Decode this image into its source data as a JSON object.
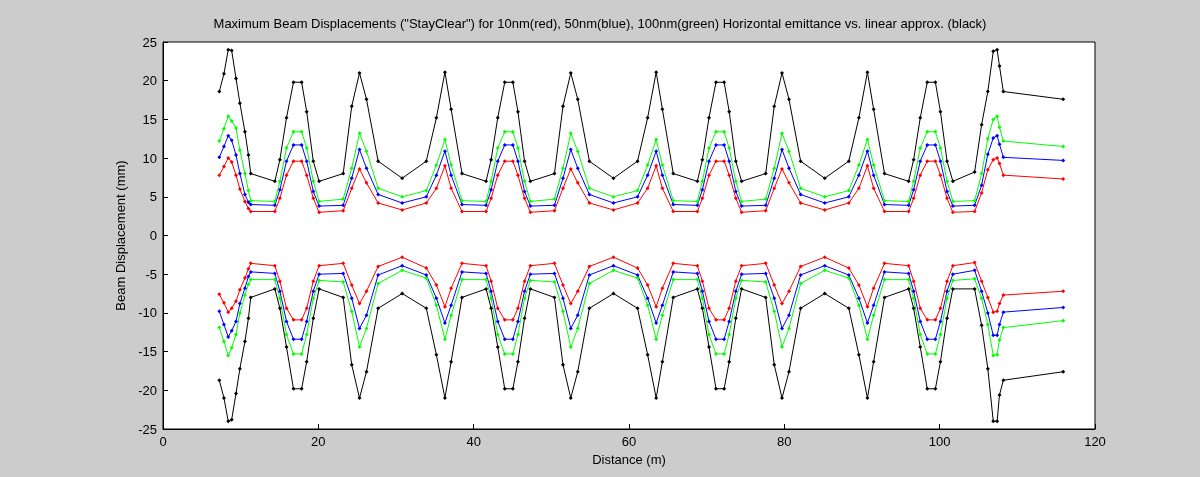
{
  "chart_data": {
    "type": "line",
    "title": "Maximum Beam Displacements (\"StayClear\") for 10nm(red), 50nm(blue), 100nm(green) Horizontal emittance vs. linear approx. (black)",
    "xlabel": "Distance (m)",
    "ylabel": "Beam Displacement (mm)",
    "xlim": [
      0,
      120
    ],
    "xticks": [
      0,
      20,
      40,
      60,
      80,
      100,
      120
    ],
    "ylim": [
      -25,
      25
    ],
    "yticks": [
      -25,
      -20,
      -15,
      -10,
      -5,
      0,
      5,
      10,
      15,
      20,
      25
    ],
    "grid": false,
    "legend": false,
    "marker": "diamond",
    "line_style": "solid",
    "x": [
      7.25,
      7.85,
      8.4,
      8.84,
      9.4,
      9.9,
      10.55,
      11.0,
      11.3,
      14.4,
      15.05,
      15.9,
      16.8,
      17.85,
      18.5,
      19.35,
      20.1,
      23.2,
      24.3,
      25.3,
      26.2,
      27.7,
      30.8,
      33.9,
      35.2,
      36.3,
      37.1,
      38.5,
      41.6,
      42.25,
      43.1,
      44.0,
      45.05,
      45.7,
      46.55,
      47.3,
      50.4,
      51.5,
      52.5,
      53.4,
      54.9,
      58.0,
      61.1,
      62.4,
      63.5,
      64.3,
      65.7,
      68.8,
      69.45,
      70.3,
      71.2,
      72.25,
      72.9,
      73.75,
      74.5,
      77.6,
      78.7,
      79.7,
      80.6,
      82.1,
      85.2,
      88.3,
      89.6,
      90.7,
      91.5,
      92.9,
      96.0,
      96.65,
      97.5,
      98.4,
      99.45,
      100.1,
      100.95,
      101.7,
      104.5,
      105.4,
      106.2,
      106.9,
      107.4,
      107.7,
      108.2,
      115.9
    ],
    "series": [
      {
        "color": "#000000",
        "values": [
          18.6,
          20.9,
          24.0,
          23.9,
          20.3,
          17.1,
          13.4,
          10.4,
          8.0,
          7.0,
          9.8,
          15.2,
          19.8,
          19.8,
          16.0,
          9.6,
          7.0,
          8.0,
          16.7,
          21.0,
          17.6,
          9.6,
          7.4,
          9.6,
          15.2,
          21.1,
          16.3,
          8.0,
          7.0,
          9.8,
          15.2,
          19.8,
          19.8,
          16.0,
          9.6,
          7.0,
          8.0,
          16.7,
          21.0,
          17.6,
          9.6,
          7.4,
          9.6,
          15.2,
          21.1,
          16.3,
          8.0,
          7.0,
          9.8,
          15.2,
          19.8,
          19.8,
          16.0,
          9.6,
          7.0,
          8.0,
          16.7,
          21.0,
          17.6,
          9.6,
          7.4,
          9.6,
          15.2,
          21.1,
          16.3,
          8.0,
          7.0,
          9.8,
          15.2,
          19.8,
          19.8,
          16.0,
          9.6,
          7.0,
          8.2,
          14.3,
          18.6,
          23.8,
          24.0,
          21.9,
          18.6,
          17.6
        ]
      },
      {
        "color": "#00ff00",
        "values": [
          12.2,
          13.8,
          15.4,
          14.8,
          13.9,
          11.0,
          8.0,
          5.8,
          4.5,
          4.4,
          7.0,
          11.3,
          13.4,
          13.4,
          11.3,
          7.0,
          4.4,
          4.7,
          8.7,
          13.2,
          10.9,
          6.1,
          5.0,
          5.8,
          9.1,
          12.4,
          9.1,
          4.5,
          4.4,
          7.0,
          11.3,
          13.4,
          13.4,
          11.3,
          7.0,
          4.4,
          4.7,
          8.7,
          13.2,
          10.9,
          6.1,
          5.0,
          5.8,
          9.1,
          12.4,
          9.1,
          4.5,
          4.4,
          7.0,
          11.3,
          13.4,
          13.4,
          11.3,
          7.0,
          4.4,
          4.7,
          8.7,
          13.2,
          10.9,
          6.1,
          5.0,
          5.8,
          9.1,
          12.4,
          9.1,
          4.5,
          4.4,
          7.0,
          11.3,
          13.4,
          13.4,
          11.3,
          7.0,
          4.4,
          4.5,
          8.0,
          12.5,
          15.0,
          15.4,
          14.0,
          12.2,
          11.5
        ]
      },
      {
        "color": "#0000ff",
        "values": [
          10.1,
          11.5,
          12.9,
          12.3,
          10.4,
          8.0,
          5.3,
          4.3,
          4.0,
          3.9,
          5.9,
          9.6,
          11.7,
          11.7,
          9.6,
          5.7,
          3.8,
          3.9,
          7.4,
          11.1,
          8.7,
          5.3,
          4.2,
          5.0,
          7.8,
          10.9,
          7.8,
          4.0,
          3.9,
          5.9,
          9.6,
          11.7,
          11.7,
          9.6,
          5.7,
          3.8,
          3.9,
          7.4,
          11.1,
          8.7,
          5.3,
          4.2,
          5.0,
          7.8,
          10.9,
          7.8,
          4.0,
          3.9,
          5.9,
          9.6,
          11.7,
          11.7,
          9.6,
          5.7,
          3.8,
          3.9,
          7.4,
          11.1,
          8.7,
          5.3,
          4.2,
          5.0,
          7.8,
          10.9,
          7.8,
          4.0,
          3.9,
          5.9,
          9.6,
          11.7,
          11.7,
          9.6,
          5.7,
          3.8,
          3.9,
          6.5,
          10.5,
          12.6,
          12.9,
          11.8,
          10.1,
          9.7
        ]
      },
      {
        "color": "#ff0000",
        "values": [
          7.8,
          8.9,
          10.0,
          9.5,
          7.8,
          6.0,
          4.4,
          3.5,
          3.1,
          3.1,
          4.8,
          7.8,
          9.6,
          9.6,
          7.8,
          4.8,
          3.0,
          3.2,
          6.1,
          8.6,
          6.8,
          4.2,
          3.3,
          4.2,
          6.1,
          9.0,
          6.1,
          3.1,
          3.1,
          4.8,
          7.8,
          9.6,
          9.6,
          7.8,
          4.8,
          3.0,
          3.2,
          6.1,
          8.6,
          6.8,
          4.2,
          3.3,
          4.2,
          6.1,
          9.0,
          6.1,
          3.1,
          3.1,
          4.8,
          7.8,
          9.6,
          9.6,
          7.8,
          4.8,
          3.0,
          3.2,
          6.1,
          8.6,
          6.8,
          4.2,
          3.3,
          4.2,
          6.1,
          9.0,
          6.1,
          3.1,
          3.1,
          4.8,
          7.8,
          9.6,
          9.6,
          7.8,
          4.8,
          3.0,
          3.1,
          5.5,
          8.5,
          9.8,
          10.0,
          9.3,
          7.8,
          7.3
        ]
      },
      {
        "color": "#000000",
        "values": [
          -18.7,
          -21.0,
          -24.0,
          -23.8,
          -20.4,
          -17.2,
          -13.7,
          -10.7,
          -8.0,
          -6.9,
          -9.4,
          -14.4,
          -19.8,
          -19.8,
          -16.3,
          -10.7,
          -6.9,
          -8.0,
          -16.7,
          -21.0,
          -17.6,
          -9.4,
          -7.5,
          -9.4,
          -15.4,
          -21.0,
          -16.3,
          -8.0,
          -6.9,
          -9.4,
          -14.4,
          -19.8,
          -19.8,
          -16.3,
          -10.7,
          -6.9,
          -8.0,
          -16.7,
          -21.0,
          -17.6,
          -9.4,
          -7.5,
          -9.4,
          -15.4,
          -21.0,
          -16.3,
          -8.0,
          -6.9,
          -9.4,
          -14.4,
          -19.8,
          -19.8,
          -16.3,
          -10.7,
          -6.9,
          -8.0,
          -16.7,
          -21.0,
          -17.6,
          -9.4,
          -7.5,
          -9.4,
          -15.4,
          -21.0,
          -16.3,
          -8.0,
          -6.9,
          -9.4,
          -14.4,
          -19.8,
          -19.8,
          -16.3,
          -10.7,
          -6.9,
          -6.9,
          -11.6,
          -17.2,
          -24.0,
          -24.0,
          -20.6,
          -18.7,
          -17.6
        ]
      },
      {
        "color": "#00ff00",
        "values": [
          -11.9,
          -13.7,
          -15.5,
          -14.5,
          -12.8,
          -10.0,
          -7.7,
          -6.3,
          -5.7,
          -5.7,
          -8.1,
          -12.8,
          -15.3,
          -15.3,
          -12.8,
          -8.1,
          -5.8,
          -6.0,
          -9.8,
          -14.4,
          -12.0,
          -6.2,
          -4.5,
          -5.5,
          -9.0,
          -13.4,
          -10.3,
          -5.7,
          -5.7,
          -8.1,
          -12.8,
          -15.3,
          -15.3,
          -12.8,
          -8.1,
          -5.8,
          -6.0,
          -9.8,
          -14.4,
          -12.0,
          -6.2,
          -4.5,
          -5.5,
          -9.0,
          -13.4,
          -10.3,
          -5.7,
          -5.7,
          -8.1,
          -12.8,
          -15.3,
          -15.3,
          -12.8,
          -8.1,
          -5.8,
          -6.0,
          -9.8,
          -14.4,
          -12.0,
          -6.2,
          -4.5,
          -5.5,
          -9.0,
          -13.4,
          -10.3,
          -5.7,
          -5.7,
          -8.1,
          -12.8,
          -15.3,
          -15.3,
          -12.8,
          -8.1,
          -5.8,
          -5.6,
          -8.1,
          -11.5,
          -15.5,
          -15.4,
          -13.5,
          -11.9,
          -11.0
        ]
      },
      {
        "color": "#0000ff",
        "values": [
          -9.8,
          -11.5,
          -13.1,
          -12.3,
          -11.1,
          -8.8,
          -6.8,
          -5.3,
          -4.7,
          -4.9,
          -7.2,
          -11.1,
          -13.4,
          -13.4,
          -11.1,
          -7.2,
          -5.0,
          -4.9,
          -8.1,
          -12.0,
          -10.3,
          -5.1,
          -3.9,
          -5.1,
          -8.1,
          -11.3,
          -9.0,
          -4.7,
          -4.9,
          -7.2,
          -11.1,
          -13.4,
          -13.4,
          -11.1,
          -7.2,
          -5.0,
          -4.9,
          -8.1,
          -12.0,
          -10.3,
          -5.1,
          -3.9,
          -5.1,
          -8.1,
          -11.3,
          -9.0,
          -4.7,
          -4.9,
          -7.2,
          -11.1,
          -13.4,
          -13.4,
          -11.1,
          -7.2,
          -5.0,
          -4.9,
          -8.1,
          -12.0,
          -10.3,
          -5.1,
          -3.9,
          -5.1,
          -8.1,
          -11.3,
          -9.0,
          -4.7,
          -4.9,
          -7.2,
          -11.1,
          -13.4,
          -13.4,
          -11.1,
          -7.2,
          -5.0,
          -4.5,
          -7.2,
          -10.0,
          -12.9,
          -12.9,
          -11.5,
          -9.9,
          -9.3
        ]
      },
      {
        "color": "#ff0000",
        "values": [
          -7.6,
          -8.7,
          -9.9,
          -9.4,
          -8.5,
          -7.0,
          -5.5,
          -4.3,
          -3.6,
          -3.9,
          -5.9,
          -9.4,
          -10.9,
          -10.9,
          -9.4,
          -5.9,
          -3.9,
          -3.6,
          -6.4,
          -8.8,
          -7.2,
          -4.0,
          -2.8,
          -4.2,
          -6.4,
          -9.2,
          -6.8,
          -3.6,
          -3.9,
          -5.9,
          -9.4,
          -10.9,
          -10.9,
          -9.4,
          -5.9,
          -3.9,
          -3.6,
          -6.4,
          -8.8,
          -7.2,
          -4.0,
          -2.8,
          -4.2,
          -6.4,
          -9.2,
          -6.8,
          -3.6,
          -3.9,
          -5.9,
          -9.4,
          -10.9,
          -10.9,
          -9.4,
          -5.9,
          -3.9,
          -3.6,
          -6.4,
          -8.8,
          -7.2,
          -4.0,
          -2.8,
          -4.2,
          -6.4,
          -9.2,
          -6.8,
          -3.6,
          -3.9,
          -5.9,
          -9.4,
          -10.9,
          -10.9,
          -9.4,
          -5.9,
          -3.9,
          -3.5,
          -5.9,
          -8.0,
          -9.9,
          -9.8,
          -8.8,
          -7.7,
          -7.2
        ]
      }
    ]
  }
}
